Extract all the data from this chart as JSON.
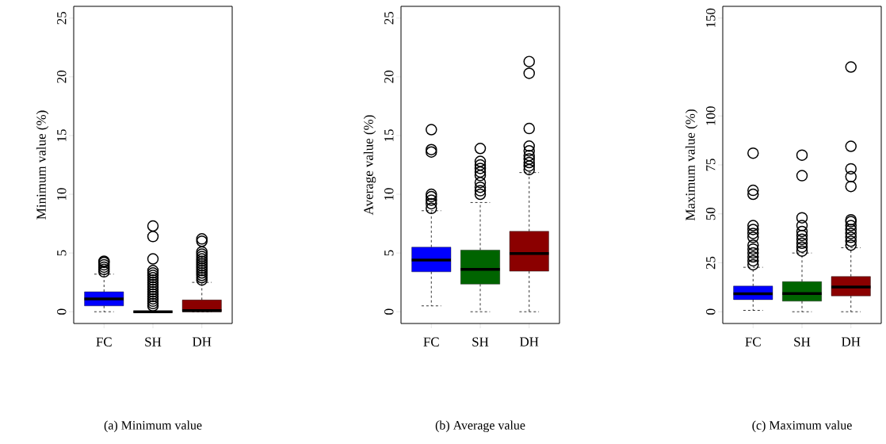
{
  "chart_data": [
    {
      "type": "box",
      "title": "(a) Minimum value",
      "ylabel": "Minimum value (%)",
      "categories": [
        "FC",
        "SH",
        "DH"
      ],
      "colors": [
        "#0000ff",
        "#000000",
        "#8b0000"
      ],
      "ylim": [
        -1,
        26
      ],
      "yticks": [
        0,
        5,
        10,
        15,
        20,
        25
      ],
      "marker": "circle",
      "boxes": [
        {
          "low": 0,
          "q1": 0.5,
          "median": 1.1,
          "q3": 1.7,
          "high": 3.2,
          "outliers": [
            3.4,
            3.6,
            3.8,
            4.0,
            4.2,
            4.3
          ]
        },
        {
          "low": 0,
          "q1": 0,
          "median": 0,
          "q3": 0,
          "high": 0,
          "outliers": [
            0.5,
            0.7,
            0.9,
            1.1,
            1.3,
            1.5,
            1.7,
            1.9,
            2.1,
            2.3,
            2.5,
            2.7,
            2.9,
            3.1,
            3.3,
            3.5,
            4.5,
            6.4,
            7.3
          ]
        },
        {
          "low": 0,
          "q1": 0,
          "median": 0.1,
          "q3": 1.0,
          "high": 2.5,
          "outliers": [
            2.7,
            2.9,
            3.1,
            3.3,
            3.5,
            3.7,
            3.9,
            4.1,
            4.3,
            4.5,
            4.7,
            4.9,
            5.1,
            6.0,
            6.2
          ]
        }
      ]
    },
    {
      "type": "box",
      "title": "(b) Average value",
      "ylabel": "Average value (%)",
      "categories": [
        "FC",
        "SH",
        "DH"
      ],
      "colors": [
        "#0000ff",
        "#006400",
        "#8b0000"
      ],
      "ylim": [
        -1,
        26
      ],
      "yticks": [
        0,
        5,
        10,
        15,
        20,
        25
      ],
      "marker": "circle",
      "boxes": [
        {
          "low": 0.5,
          "q1": 3.4,
          "median": 4.4,
          "q3": 5.5,
          "high": 8.6,
          "outliers": [
            8.8,
            9.2,
            9.5,
            9.8,
            10.0,
            13.6,
            13.8,
            15.5
          ]
        },
        {
          "low": 0,
          "q1": 2.35,
          "median": 3.6,
          "q3": 5.25,
          "high": 9.3,
          "outliers": [
            10.0,
            10.3,
            10.6,
            11.0,
            11.6,
            11.9,
            12.2,
            12.5,
            12.8,
            13.9
          ]
        },
        {
          "low": 0,
          "q1": 3.45,
          "median": 4.95,
          "q3": 6.85,
          "high": 11.85,
          "outliers": [
            12.1,
            12.4,
            12.7,
            13.0,
            13.3,
            13.7,
            14.1,
            15.6,
            20.3,
            21.3
          ]
        }
      ]
    },
    {
      "type": "box",
      "title": "(c) Maximum value",
      "ylabel": "Maximum value (%)",
      "categories": [
        "FC",
        "SH",
        "DH"
      ],
      "colors": [
        "#0000ff",
        "#006400",
        "#8b0000"
      ],
      "ylim": [
        -6,
        156
      ],
      "yticks": [
        0,
        25,
        50,
        75,
        100,
        150
      ],
      "marker": "circle",
      "boxes": [
        {
          "low": 0.7,
          "q1": 6.2,
          "median": 9.2,
          "q3": 13.1,
          "high": 22.7,
          "outliers": [
            24,
            26,
            28,
            30,
            32,
            34,
            38,
            40,
            42,
            44,
            60,
            62,
            81
          ]
        },
        {
          "low": 0,
          "q1": 5.4,
          "median": 9.3,
          "q3": 15.4,
          "high": 30,
          "outliers": [
            31,
            33,
            35,
            37,
            39,
            41,
            44,
            48,
            69.5,
            80
          ]
        },
        {
          "low": 0,
          "q1": 8.1,
          "median": 12.6,
          "q3": 18,
          "high": 32.7,
          "outliers": [
            34,
            36,
            38,
            40,
            42,
            44,
            46,
            47,
            64,
            69,
            73,
            84.5,
            125
          ]
        }
      ]
    }
  ]
}
